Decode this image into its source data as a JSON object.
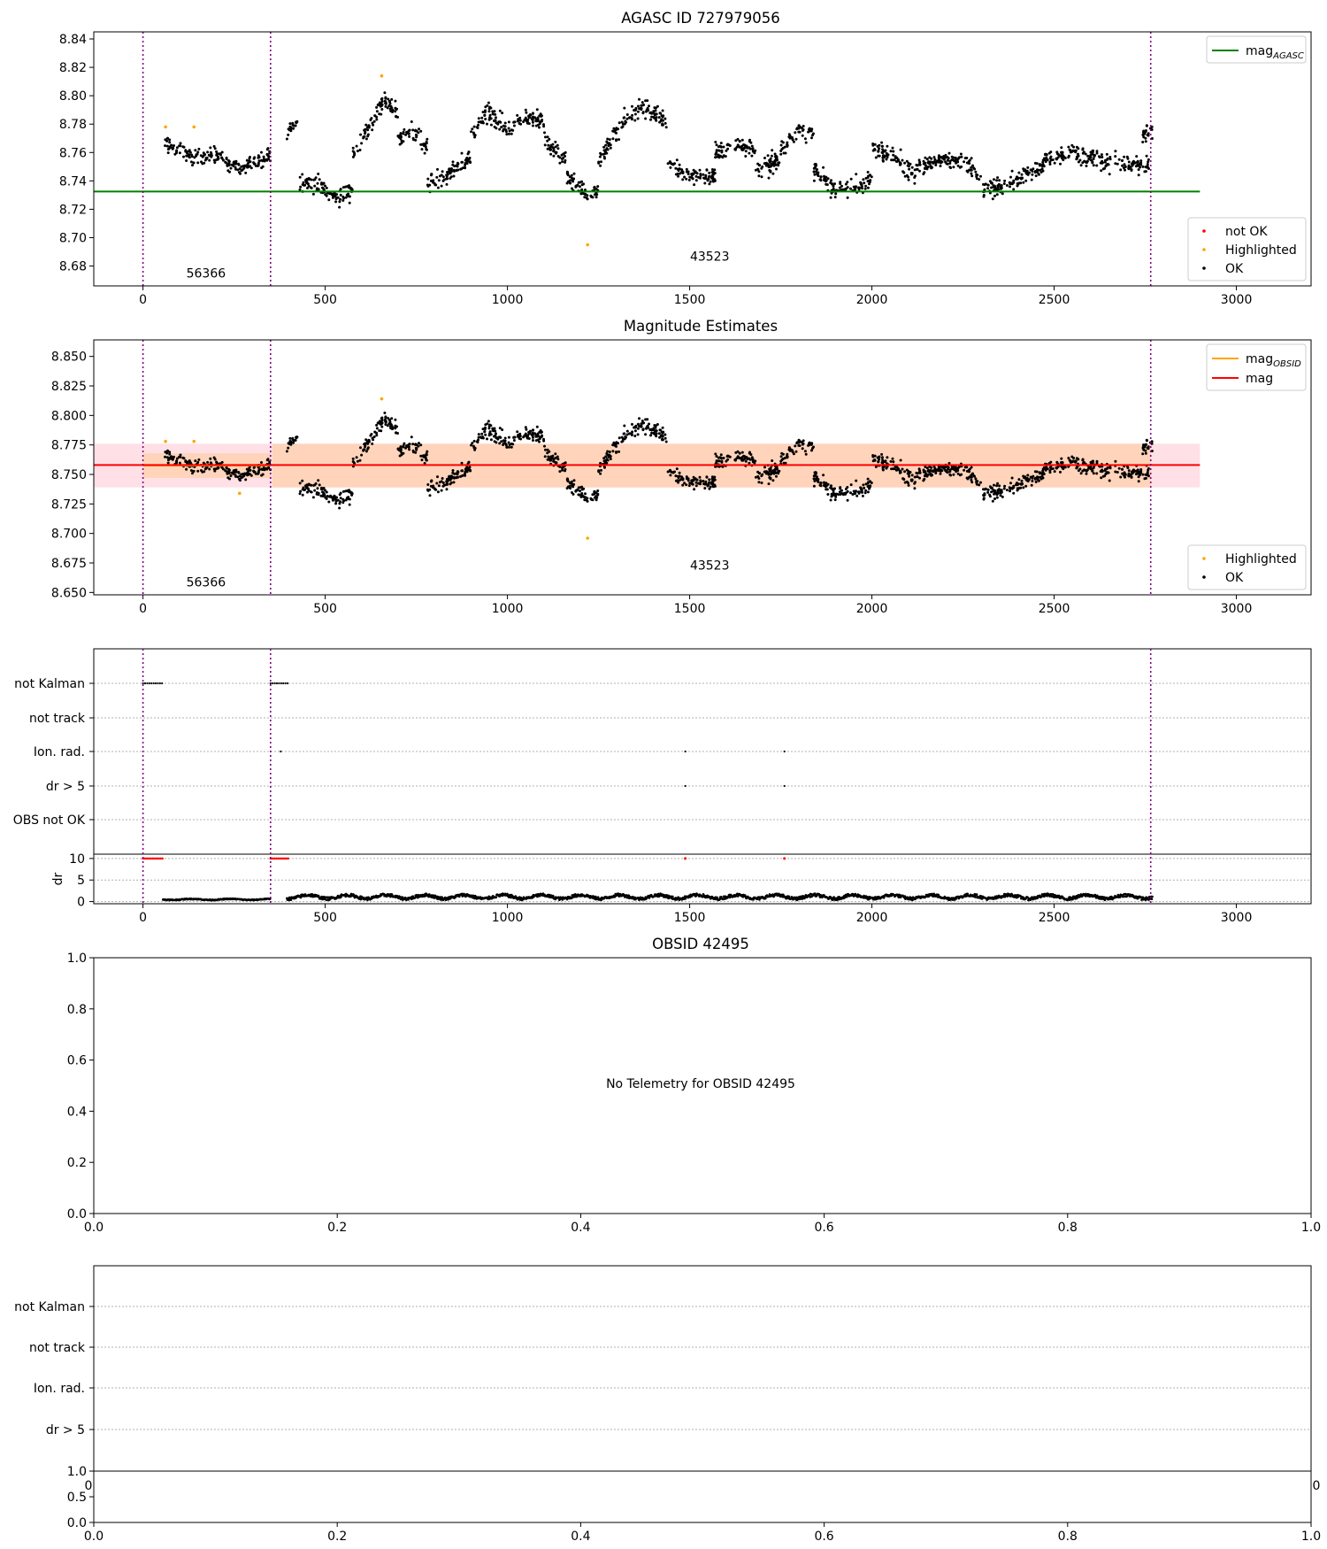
{
  "colors": {
    "ok": "#000000",
    "highlighted": "#ffa500",
    "not_ok": "#ff0000",
    "mag_agasc": "#008000",
    "mag_obsid": "#ffa500",
    "mag": "#ff0000",
    "band_orange": "#ffd3b6",
    "band_pink": "#ffdde4",
    "boundary": "#800080",
    "grid": "#b0b0b0"
  },
  "chart_data": [
    {
      "type": "scatter",
      "title": "AGASC ID 727979056",
      "xlim": [
        -135,
        3205
      ],
      "ylim": [
        8.666,
        8.845
      ],
      "x_ticks": [
        0,
        500,
        1000,
        1500,
        2000,
        2500,
        3000
      ],
      "y_ticks": [
        8.68,
        8.7,
        8.72,
        8.74,
        8.76,
        8.78,
        8.8,
        8.82,
        8.84
      ],
      "y_tick_labels": [
        "8.68",
        "8.70",
        "8.72",
        "8.74",
        "8.76",
        "8.78",
        "8.80",
        "8.82",
        "8.84"
      ],
      "obs_boundaries": [
        0,
        350,
        2765
      ],
      "obs_annotations": [
        {
          "text": "56366",
          "x": 173,
          "y": 8.675
        },
        {
          "text": "43523",
          "x": 1555,
          "y": 8.687
        }
      ],
      "lines": [
        {
          "name": "mag_AGASC",
          "y": 8.7325,
          "x_range": [
            -135,
            2900
          ],
          "color": "mag_agasc"
        }
      ],
      "legend_top": {
        "placement": "upper right",
        "entries": [
          {
            "label": "mag",
            "sub": "AGASC",
            "kind": "line",
            "color": "mag_agasc"
          }
        ]
      },
      "legend_bottom": {
        "placement": "lower right",
        "entries": [
          {
            "label": "not OK",
            "kind": "dot",
            "color": "not_ok"
          },
          {
            "label": "Highlighted",
            "kind": "dot",
            "color": "highlighted"
          },
          {
            "label": "OK",
            "kind": "dot",
            "color": "ok"
          }
        ]
      },
      "series_segments": [
        {
          "name": "OK",
          "x_range": [
            60,
            350
          ],
          "knots": [
            [
              60,
              8.767
            ],
            [
              100,
              8.761
            ],
            [
              150,
              8.756
            ],
            [
              200,
              8.758
            ],
            [
              260,
              8.749
            ],
            [
              300,
              8.754
            ],
            [
              350,
              8.757
            ]
          ],
          "spread": 0.013
        },
        {
          "name": "OK",
          "x_range": [
            395,
            425
          ],
          "knots": [
            [
              395,
              8.773
            ],
            [
              425,
              8.783
            ]
          ],
          "spread": 0.01
        },
        {
          "name": "OK",
          "x_range": [
            430,
            575
          ],
          "knots": [
            [
              430,
              8.741
            ],
            [
              480,
              8.736
            ],
            [
              530,
              8.729
            ],
            [
              575,
              8.734
            ]
          ],
          "spread": 0.016
        },
        {
          "name": "OK",
          "x_range": [
            575,
            700
          ],
          "knots": [
            [
              575,
              8.757
            ],
            [
              620,
              8.778
            ],
            [
              660,
              8.797
            ],
            [
              700,
              8.789
            ]
          ],
          "spread": 0.015
        },
        {
          "name": "OK",
          "x_range": [
            700,
            780
          ],
          "knots": [
            [
              700,
              8.77
            ],
            [
              740,
              8.775
            ],
            [
              780,
              8.764
            ]
          ],
          "spread": 0.015
        },
        {
          "name": "OK",
          "x_range": [
            780,
            900
          ],
          "knots": [
            [
              780,
              8.736
            ],
            [
              840,
              8.744
            ],
            [
              900,
              8.757
            ]
          ],
          "spread": 0.016
        },
        {
          "name": "OK",
          "x_range": [
            900,
            1100
          ],
          "knots": [
            [
              900,
              8.773
            ],
            [
              950,
              8.788
            ],
            [
              1000,
              8.776
            ],
            [
              1050,
              8.785
            ],
            [
              1100,
              8.783
            ]
          ],
          "spread": 0.016
        },
        {
          "name": "OK",
          "x_range": [
            1100,
            1160
          ],
          "knots": [
            [
              1100,
              8.768
            ],
            [
              1160,
              8.755
            ]
          ],
          "spread": 0.012
        },
        {
          "name": "OK",
          "x_range": [
            1160,
            1250
          ],
          "knots": [
            [
              1160,
              8.743
            ],
            [
              1210,
              8.733
            ],
            [
              1250,
              8.733
            ]
          ],
          "spread": 0.014
        },
        {
          "name": "OK",
          "x_range": [
            1250,
            1320
          ],
          "knots": [
            [
              1250,
              8.755
            ],
            [
              1290,
              8.77
            ],
            [
              1320,
              8.78
            ]
          ],
          "spread": 0.014
        },
        {
          "name": "OK",
          "x_range": [
            1320,
            1440
          ],
          "knots": [
            [
              1320,
              8.785
            ],
            [
              1380,
              8.792
            ],
            [
              1440,
              8.782
            ]
          ],
          "spread": 0.016
        },
        {
          "name": "OK",
          "x_range": [
            1440,
            1570
          ],
          "knots": [
            [
              1440,
              8.752
            ],
            [
              1500,
              8.744
            ],
            [
              1570,
              8.743
            ]
          ],
          "spread": 0.015
        },
        {
          "name": "OK",
          "x_range": [
            1570,
            1680
          ],
          "knots": [
            [
              1570,
              8.76
            ],
            [
              1620,
              8.764
            ],
            [
              1680,
              8.764
            ]
          ],
          "spread": 0.015
        },
        {
          "name": "OK",
          "x_range": [
            1680,
            1840
          ],
          "knots": [
            [
              1680,
              8.748
            ],
            [
              1730,
              8.752
            ],
            [
              1790,
              8.775
            ],
            [
              1840,
              8.772
            ]
          ],
          "spread": 0.016
        },
        {
          "name": "OK",
          "x_range": [
            1840,
            2000
          ],
          "knots": [
            [
              1840,
              8.748
            ],
            [
              1900,
              8.733
            ],
            [
              1950,
              8.735
            ],
            [
              2000,
              8.742
            ]
          ],
          "spread": 0.015
        },
        {
          "name": "OK",
          "x_range": [
            2000,
            2120
          ],
          "knots": [
            [
              2000,
              8.763
            ],
            [
              2060,
              8.76
            ],
            [
              2120,
              8.742
            ]
          ],
          "spread": 0.015
        },
        {
          "name": "OK",
          "x_range": [
            2120,
            2300
          ],
          "knots": [
            [
              2120,
              8.748
            ],
            [
              2200,
              8.756
            ],
            [
              2260,
              8.752
            ],
            [
              2300,
              8.742
            ]
          ],
          "spread": 0.014
        },
        {
          "name": "OK",
          "x_range": [
            2300,
            2470
          ],
          "knots": [
            [
              2300,
              8.733
            ],
            [
              2380,
              8.738
            ],
            [
              2470,
              8.75
            ]
          ],
          "spread": 0.014
        },
        {
          "name": "OK",
          "x_range": [
            2470,
            2760
          ],
          "knots": [
            [
              2470,
              8.755
            ],
            [
              2550,
              8.76
            ],
            [
              2650,
              8.752
            ],
            [
              2760,
              8.752
            ]
          ],
          "spread": 0.015
        },
        {
          "name": "OK",
          "x_range": [
            2740,
            2770
          ],
          "knots": [
            [
              2740,
              8.772
            ],
            [
              2770,
              8.775
            ]
          ],
          "spread": 0.016
        }
      ],
      "highlighted_points": [
        [
          62,
          8.778
        ],
        [
          140,
          8.778
        ],
        [
          655,
          8.814
        ],
        [
          1220,
          8.695
        ]
      ]
    },
    {
      "type": "scatter",
      "title": "Magnitude Estimates",
      "xlim": [
        -135,
        3205
      ],
      "ylim": [
        8.648,
        8.864
      ],
      "x_ticks": [
        0,
        500,
        1000,
        1500,
        2000,
        2500,
        3000
      ],
      "y_ticks": [
        8.65,
        8.675,
        8.7,
        8.725,
        8.75,
        8.775,
        8.8,
        8.825,
        8.85
      ],
      "y_tick_labels": [
        "8.650",
        "8.675",
        "8.700",
        "8.725",
        "8.750",
        "8.775",
        "8.800",
        "8.825",
        "8.850"
      ],
      "obs_boundaries": [
        0,
        350,
        2765
      ],
      "obs_annotations": [
        {
          "text": "56366",
          "x": 173,
          "y": 8.659
        },
        {
          "text": "43523",
          "x": 1555,
          "y": 8.673
        }
      ],
      "lines": [
        {
          "name": "mag_OBSID",
          "y": 8.7575,
          "x_range": [
            0,
            350
          ],
          "color": "mag_obsid"
        },
        {
          "name": "mag",
          "y": 8.758,
          "x_range": [
            -135,
            2900
          ],
          "color": "mag"
        }
      ],
      "bands": [
        {
          "y_range": [
            8.739,
            8.776
          ],
          "x_range": [
            -135,
            2900
          ],
          "color": "band_pink"
        },
        {
          "y_range": [
            8.739,
            8.776
          ],
          "x_range": [
            355,
            2765
          ],
          "color": "band_orange"
        },
        {
          "y_range": [
            8.747,
            8.768
          ],
          "x_range": [
            0,
            350
          ],
          "color": "band_orange"
        }
      ],
      "legend_top": {
        "placement": "upper right",
        "entries": [
          {
            "label": "mag",
            "sub": "OBSID",
            "kind": "line",
            "color": "mag_obsid"
          },
          {
            "label": "mag",
            "sub": "",
            "kind": "line",
            "color": "mag"
          }
        ]
      },
      "legend_bottom": {
        "placement": "lower right",
        "entries": [
          {
            "label": "Highlighted",
            "kind": "dot",
            "color": "highlighted"
          },
          {
            "label": "OK",
            "kind": "dot",
            "color": "ok"
          }
        ]
      },
      "highlighted_points": [
        [
          62,
          8.778
        ],
        [
          140,
          8.778
        ],
        [
          655,
          8.814
        ],
        [
          1220,
          8.696
        ],
        [
          265,
          8.734
        ]
      ]
    },
    {
      "type": "scatter",
      "title": "",
      "xlim": [
        -135,
        3205
      ],
      "x_ticks": [
        0,
        500,
        1000,
        1500,
        2000,
        2500,
        3000
      ],
      "flag_labels": [
        "not Kalman",
        "not track",
        "Ion. rad.",
        "dr > 5",
        "OBS not OK"
      ],
      "flags": {
        "not Kalman": [
          [
            0,
            55
          ],
          [
            350,
            400
          ]
        ],
        "Ion. rad.": [
          [
            378
          ],
          [
            1488
          ],
          [
            1760
          ]
        ],
        "dr > 5": [
          [
            1488
          ],
          [
            1760
          ]
        ]
      },
      "obs_boundaries": [
        0,
        350,
        2765
      ],
      "dr_panel": {
        "ylabel": "dr",
        "y_ticks": [
          0,
          5,
          10
        ],
        "y_tick_labels": [
          "0",
          "5",
          "10"
        ],
        "ylim": [
          -0.5,
          11
        ],
        "not_ok_ranges": [
          [
            0,
            55
          ],
          [
            350,
            400
          ],
          [
            1488,
            1488
          ],
          [
            1760,
            1760
          ]
        ],
        "ok_segments": [
          {
            "x_range": [
              55,
              350
            ],
            "level": 0.5,
            "amp": 0.2
          },
          {
            "x_range": [
              395,
              2770
            ],
            "level": 1.1,
            "amp": 0.7
          }
        ]
      }
    },
    {
      "type": "table",
      "title": "OBSID 42495",
      "message": "No Telemetry for OBSID 42495",
      "xlim": [
        0,
        1
      ],
      "ylim": [
        0,
        1
      ],
      "x_ticks": [
        0,
        0.2,
        0.4,
        0.6,
        0.8,
        1.0
      ],
      "x_tick_labels": [
        "0.0",
        "0.2",
        "0.4",
        "0.6",
        "0.8",
        "1.0"
      ],
      "y_ticks": [
        0,
        0.2,
        0.4,
        0.6,
        0.8,
        1.0
      ],
      "y_tick_labels": [
        "0.0",
        "0.2",
        "0.4",
        "0.6",
        "0.8",
        "1.0"
      ]
    },
    {
      "type": "scatter",
      "title": "",
      "flag_labels": [
        "not Kalman",
        "not track",
        "Ion. rad.",
        "dr > 5"
      ],
      "overlapping_tick_labels": [
        "0",
        "0"
      ],
      "x_ticks": [
        0,
        0.2,
        0.4,
        0.6,
        0.8,
        1.0
      ],
      "x_tick_labels": [
        "0.0",
        "0.2",
        "0.4",
        "0.6",
        "0.8",
        "1.0"
      ],
      "y_ticks": [
        0,
        0.5,
        1.0
      ],
      "y_tick_labels": [
        "0.0",
        "0.5",
        "1.0"
      ]
    }
  ]
}
